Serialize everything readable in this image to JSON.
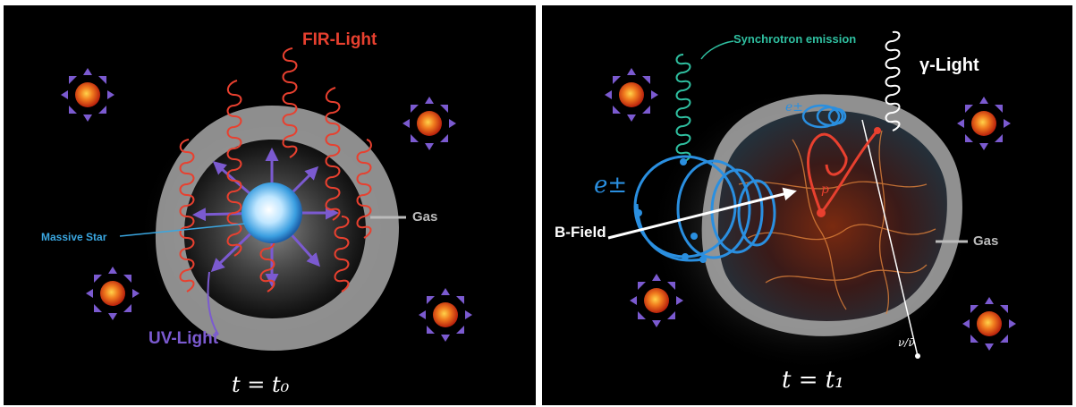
{
  "left_panel": {
    "fir_label": "FIR-Light",
    "massive_star_label": "Massive Star",
    "gas_label": "Gas",
    "uv_label": "UV-Light",
    "time_label": "t = t₀"
  },
  "right_panel": {
    "synchrotron_label": "Synchrotron emission",
    "gamma_label": "γ-Light",
    "electron_label": "e±",
    "electron_small_label": "e±",
    "proton_label": "p",
    "bfield_label": "B-Field",
    "gas_label": "Gas",
    "neutrino_label": "ν/ν̄",
    "time_label": "t = t₁"
  },
  "colors": {
    "fir": "#e8402f",
    "uv": "#7b5ad0",
    "massive_star": "#3aa6e0",
    "gas": "#b9b9b9",
    "synchrotron": "#2fbfa0",
    "electron": "#2a8fe0",
    "proton": "#e8402f",
    "gamma": "#ffffff"
  }
}
